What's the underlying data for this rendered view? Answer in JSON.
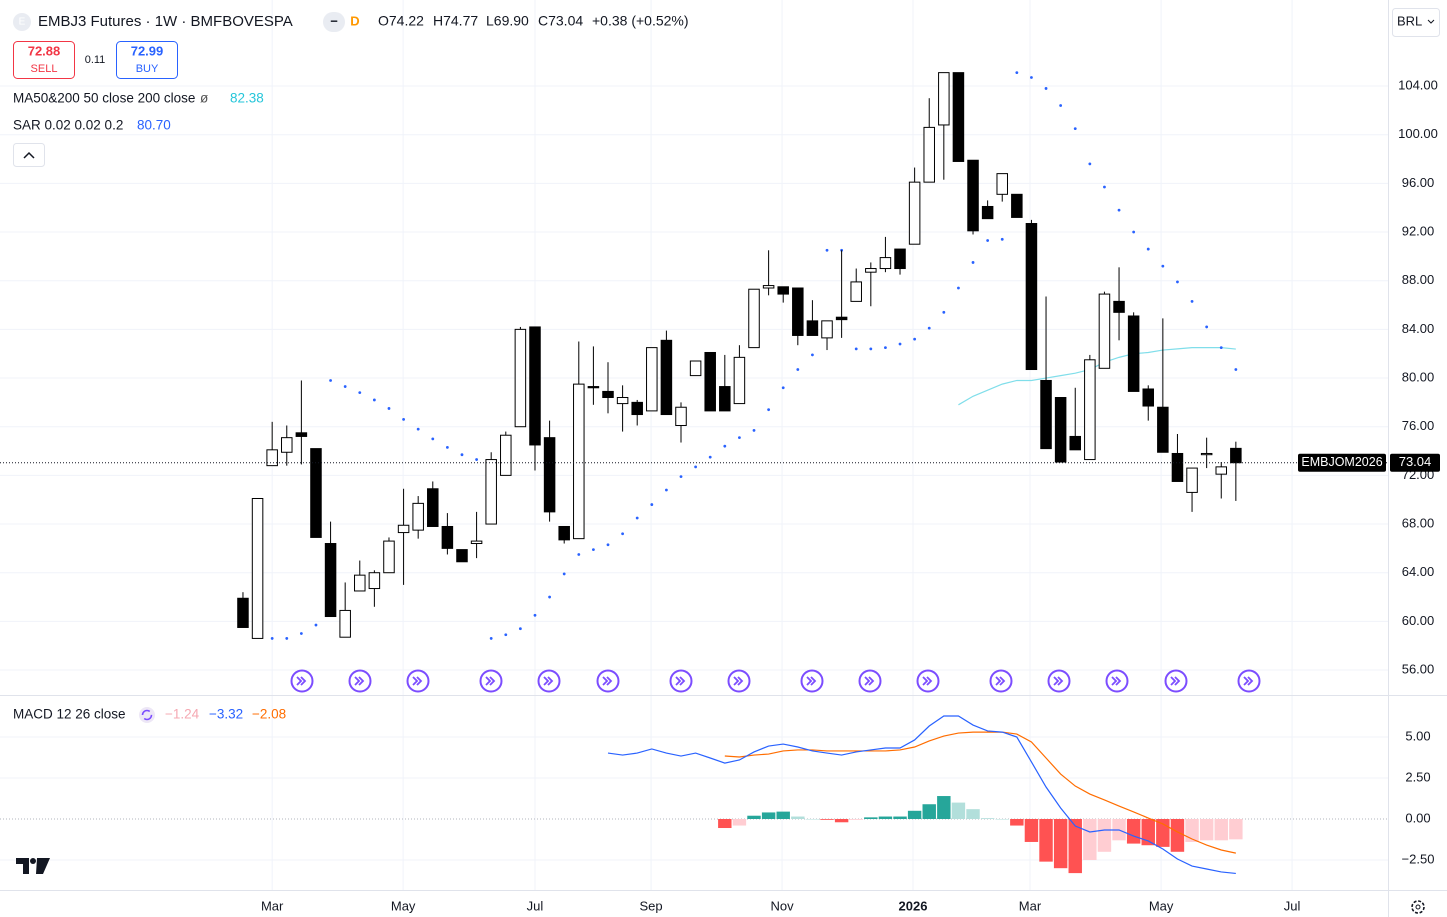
{
  "header": {
    "logo": "E",
    "title": "EMBJ3 Futures · 1W · BMFBOVESPA",
    "minus": "−",
    "badge": "D",
    "ohlc": [
      "O74.22",
      "H74.77",
      "L69.90",
      "C73.04"
    ],
    "change": "+0.38 (+0.52%)",
    "sell_price": "72.88",
    "sell": "SELL",
    "spread": "0.11",
    "buy_price": "72.99",
    "buy": "BUY",
    "currency": "BRL"
  },
  "chart_data": [
    {
      "type": "candlestick",
      "symbol_label": "EMBJOM2026",
      "legend": {
        "ma_text": "MA50&200 50 close 200 close",
        "ma_icon": "ø",
        "ma_value": "82.38",
        "sar_text": "SAR 0.02 0.02 0.2",
        "sar_value": "80.70"
      },
      "categories": [
        null,
        null,
        null,
        null,
        null,
        null,
        null,
        null,
        null,
        null,
        null,
        null,
        null,
        null,
        null,
        null,
        null,
        null,
        null,
        null,
        null,
        null,
        null,
        null,
        null,
        null,
        null,
        null,
        null,
        null,
        null,
        null,
        null,
        null,
        null,
        null,
        null,
        null,
        null,
        null,
        null,
        null,
        null,
        null,
        null,
        null,
        null,
        null,
        null,
        null,
        null,
        null,
        null,
        null,
        null,
        null,
        null,
        null,
        null,
        null,
        null,
        null,
        null,
        null,
        null,
        null,
        null,
        null,
        null
      ],
      "open": [
        61.9,
        58.6,
        72.8,
        73.9,
        75.5,
        74.2,
        66.4,
        58.7,
        62.5,
        62.7,
        64.0,
        67.3,
        67.5,
        70.9,
        67.8,
        65.9,
        66.4,
        68.0,
        72.0,
        76.0,
        84.2,
        75.1,
        67.8,
        66.8,
        79.3,
        78.9,
        77.9,
        78.0,
        77.3,
        83.1,
        76.1,
        80.2,
        82.1,
        79.3,
        77.9,
        82.5,
        87.4,
        87.5,
        87.4,
        84.7,
        83.3,
        85.0,
        86.3,
        88.7,
        89.0,
        90.6,
        91.0,
        96.1,
        100.8,
        105.1,
        97.9,
        94.1,
        95.1,
        95.1,
        92.7,
        79.8,
        78.4,
        75.2,
        73.3,
        80.8,
        86.3,
        85.1,
        79.1,
        77.6,
        73.8,
        70.6,
        73.7,
        72.1,
        74.22
      ],
      "high": [
        62.4,
        70.1,
        76.4,
        76.1,
        79.8,
        74.2,
        68.2,
        63.2,
        65.0,
        64.2,
        66.9,
        70.9,
        70.3,
        71.5,
        68.9,
        65.9,
        69.0,
        73.9,
        75.6,
        84.2,
        84.2,
        76.5,
        67.8,
        83.0,
        82.6,
        81.3,
        79.4,
        78.2,
        82.5,
        83.9,
        78.0,
        81.4,
        82.1,
        81.9,
        82.7,
        87.3,
        90.5,
        87.5,
        87.4,
        86.4,
        84.7,
        90.5,
        89.0,
        89.5,
        91.6,
        90.6,
        97.3,
        103.0,
        105.1,
        105.1,
        97.9,
        94.6,
        96.8,
        95.1,
        93.0,
        86.7,
        78.4,
        79.2,
        81.9,
        87.1,
        89.1,
        85.4,
        79.4,
        84.9,
        75.4,
        72.6,
        75.1,
        73.1,
        74.77
      ],
      "low": [
        59.5,
        58.6,
        72.8,
        72.8,
        72.9,
        66.9,
        60.4,
        58.7,
        62.5,
        61.2,
        64.0,
        63.0,
        66.8,
        67.8,
        65.5,
        64.9,
        65.2,
        68.0,
        72.0,
        76.0,
        72.4,
        68.2,
        66.4,
        66.8,
        77.8,
        77.1,
        75.6,
        76.1,
        77.3,
        77.0,
        74.7,
        80.2,
        77.3,
        77.3,
        77.9,
        82.5,
        86.8,
        86.2,
        82.7,
        83.5,
        82.3,
        83.3,
        86.3,
        85.9,
        88.7,
        88.5,
        91.0,
        96.1,
        96.3,
        97.8,
        91.8,
        93.1,
        94.5,
        93.2,
        80.7,
        74.2,
        73.1,
        74.1,
        73.3,
        80.8,
        83.1,
        78.9,
        76.5,
        73.9,
        71.5,
        69.0,
        72.6,
        70.1,
        69.9
      ],
      "close": [
        59.5,
        70.1,
        74.1,
        75.1,
        75.2,
        66.9,
        60.4,
        60.9,
        63.8,
        64.0,
        66.6,
        67.9,
        69.7,
        67.8,
        66.0,
        64.9,
        66.6,
        73.3,
        75.3,
        84.0,
        74.5,
        69.0,
        66.7,
        79.5,
        79.2,
        78.4,
        78.4,
        77.0,
        82.5,
        77.0,
        77.6,
        81.4,
        77.3,
        77.3,
        81.7,
        87.3,
        87.6,
        86.9,
        83.5,
        83.5,
        84.7,
        84.8,
        87.9,
        89.0,
        89.9,
        89.0,
        96.1,
        100.6,
        105.1,
        97.8,
        92.1,
        93.1,
        96.8,
        93.2,
        80.7,
        74.2,
        73.1,
        74.1,
        81.5,
        86.9,
        85.4,
        78.9,
        77.7,
        73.9,
        71.5,
        72.6,
        73.8,
        72.7,
        73.04
      ],
      "sar": [
        null,
        null,
        58.6,
        58.6,
        59.0,
        59.7,
        79.8,
        79.3,
        78.8,
        78.2,
        77.5,
        76.6,
        75.8,
        75.0,
        74.3,
        73.7,
        73.3,
        58.6,
        58.9,
        59.4,
        60.5,
        62.0,
        63.9,
        65.5,
        65.9,
        66.3,
        67.2,
        68.5,
        69.6,
        70.8,
        71.9,
        72.7,
        73.5,
        74.4,
        75.1,
        75.7,
        77.4,
        79.2,
        80.7,
        81.9,
        90.5,
        90.5,
        82.4,
        82.4,
        82.5,
        82.8,
        83.2,
        84.1,
        85.4,
        87.4,
        89.5,
        91.3,
        91.4,
        105.1,
        104.7,
        103.8,
        102.4,
        100.5,
        97.6,
        95.7,
        93.8,
        92.0,
        90.6,
        89.2,
        87.9,
        86.3,
        84.2,
        82.5,
        80.7
      ],
      "ma": [
        null,
        null,
        null,
        null,
        null,
        null,
        null,
        null,
        null,
        null,
        null,
        null,
        null,
        null,
        null,
        null,
        null,
        null,
        null,
        null,
        null,
        null,
        null,
        null,
        null,
        null,
        null,
        null,
        null,
        null,
        null,
        null,
        null,
        null,
        null,
        null,
        null,
        null,
        null,
        null,
        null,
        null,
        null,
        null,
        null,
        null,
        null,
        null,
        null,
        77.8,
        78.5,
        79.0,
        79.5,
        79.8,
        79.8,
        80.0,
        80.2,
        80.4,
        80.7,
        81.3,
        81.7,
        82.0,
        82.1,
        82.3,
        82.4,
        82.5,
        82.5,
        82.5,
        82.38
      ],
      "colors": {
        "up": "#ffffff",
        "down": "#000000",
        "border": "#000000",
        "sar": "#2962ff",
        "ma": "#80deea"
      },
      "xlim": [
        -16.64,
        78.42
      ],
      "xticks": [
        {
          "value": 2.0,
          "label": "Mar"
        },
        {
          "value": 10.97,
          "label": "May"
        },
        {
          "value": 20.0,
          "label": "Jul"
        },
        {
          "value": 27.95,
          "label": "Sep"
        },
        {
          "value": 36.92,
          "label": "Nov"
        },
        {
          "value": 45.89,
          "label": "2026"
        },
        {
          "value": 53.9,
          "label": "Mar"
        },
        {
          "value": 62.88,
          "label": "May"
        },
        {
          "value": 71.85,
          "label": "Jul"
        }
      ],
      "ylim": [
        53.95,
        111.07
      ],
      "yticks": [
        {
          "value": 56,
          "label": "56.00"
        },
        {
          "value": 60,
          "label": "60.00"
        },
        {
          "value": 64,
          "label": "64.00"
        },
        {
          "value": 68,
          "label": "68.00"
        },
        {
          "value": 72,
          "label": "72.00"
        },
        {
          "value": 76,
          "label": "76.00"
        },
        {
          "value": 80,
          "label": "80.00"
        },
        {
          "value": 84,
          "label": "84.00"
        },
        {
          "value": 88,
          "label": "88.00"
        },
        {
          "value": 92,
          "label": "92.00"
        },
        {
          "value": 96,
          "label": "96.00"
        },
        {
          "value": 100,
          "label": "100.00"
        },
        {
          "value": 104,
          "label": "104.00"
        }
      ],
      "grid": true
    },
    {
      "type": "macd",
      "title": "MACD 12 26 close",
      "value_labels": [
        "−1.24",
        "−3.32",
        "−2.08"
      ],
      "series": [
        {
          "name": "MACD",
          "color": "#2962ff",
          "values": [
            null,
            null,
            null,
            null,
            null,
            null,
            null,
            null,
            null,
            null,
            null,
            null,
            null,
            null,
            null,
            null,
            null,
            null,
            null,
            null,
            null,
            null,
            null,
            null,
            null,
            4.02,
            3.9,
            4.02,
            4.27,
            4.02,
            3.84,
            4.02,
            3.72,
            3.41,
            3.6,
            4.09,
            4.45,
            4.57,
            4.39,
            4.15,
            4.02,
            3.9,
            4.09,
            4.21,
            4.33,
            4.33,
            4.82,
            5.67,
            6.28,
            6.28,
            5.73,
            5.37,
            5.3,
            5.0,
            3.48,
            1.95,
            0.67,
            -0.43,
            -0.79,
            -0.67,
            -0.67,
            -1.04,
            -1.34,
            -1.83,
            -2.44,
            -2.87,
            -3.05,
            -3.23,
            -3.32
          ]
        },
        {
          "name": "Signal",
          "color": "#ff6d00",
          "values": [
            null,
            null,
            null,
            null,
            null,
            null,
            null,
            null,
            null,
            null,
            null,
            null,
            null,
            null,
            null,
            null,
            null,
            null,
            null,
            null,
            null,
            null,
            null,
            null,
            null,
            null,
            null,
            null,
            null,
            null,
            null,
            null,
            null,
            3.84,
            3.78,
            3.9,
            3.96,
            4.15,
            4.21,
            4.21,
            4.15,
            4.15,
            4.15,
            4.15,
            4.15,
            4.21,
            4.39,
            4.76,
            5.06,
            5.24,
            5.3,
            5.3,
            5.3,
            5.18,
            4.7,
            3.72,
            2.74,
            2.01,
            1.52,
            1.16,
            0.79,
            0.43,
            0.06,
            -0.3,
            -0.79,
            -1.22,
            -1.59,
            -1.89,
            -2.08
          ]
        },
        {
          "name": "Histogram",
          "colors": [
            "#26a69a",
            "#b2dfdb",
            "#ffcdd2",
            "#ff5252"
          ],
          "values": [
            null,
            null,
            null,
            null,
            null,
            null,
            null,
            null,
            null,
            null,
            null,
            null,
            null,
            null,
            null,
            null,
            null,
            null,
            null,
            null,
            null,
            null,
            null,
            null,
            null,
            null,
            null,
            null,
            null,
            null,
            null,
            null,
            null,
            -0.55,
            -0.4,
            0.2,
            0.4,
            0.45,
            0.15,
            0,
            -0.05,
            -0.2,
            -0.05,
            0.1,
            0.15,
            0.15,
            0.5,
            0.9,
            1.4,
            1.0,
            0.6,
            0.05,
            0,
            -0.4,
            -1.4,
            -2.6,
            -3.0,
            -3.3,
            -2.5,
            -2.0,
            -1.3,
            -1.5,
            -1.6,
            -1.7,
            -2.0,
            -1.4,
            -1.3,
            -1.3,
            -1.24
          ]
        }
      ],
      "ylim": [
        -4.33,
        7.44
      ],
      "yticks": [
        {
          "value": 5,
          "label": "5.00"
        },
        {
          "value": 2.5,
          "label": "2.50"
        },
        {
          "value": 0,
          "label": "0.00"
        },
        {
          "value": -2.5,
          "label": "−2.50"
        }
      ]
    }
  ]
}
